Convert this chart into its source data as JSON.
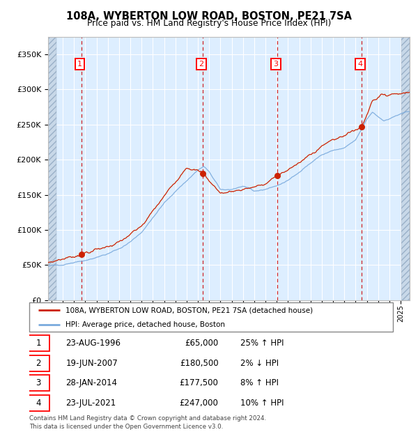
{
  "title": "108A, WYBERTON LOW ROAD, BOSTON, PE21 7SA",
  "subtitle": "Price paid vs. HM Land Registry's House Price Index (HPI)",
  "hpi_line_color": "#7aaadd",
  "price_line_color": "#cc2200",
  "dot_color": "#cc2200",
  "vline_color": "#cc0000",
  "bg_color": "#ddeeff",
  "grid_color": "#ffffff",
  "ylim": [
    0,
    375000
  ],
  "yticks": [
    0,
    50000,
    100000,
    150000,
    200000,
    250000,
    300000,
    350000
  ],
  "xlim_start": 1993.7,
  "xlim_end": 2025.8,
  "hpi_anchors_x": [
    1993.7,
    1994.0,
    1995.0,
    1996.0,
    1997.0,
    1998.0,
    1999.0,
    2000.0,
    2001.0,
    2002.0,
    2003.0,
    2004.0,
    2005.0,
    2006.0,
    2007.0,
    2007.5,
    2008.0,
    2009.0,
    2010.0,
    2011.0,
    2012.0,
    2013.0,
    2014.0,
    2015.0,
    2016.0,
    2017.0,
    2018.0,
    2019.0,
    2020.0,
    2021.0,
    2021.5,
    2022.0,
    2022.5,
    2023.0,
    2023.5,
    2024.0,
    2025.0,
    2025.8
  ],
  "hpi_anchors_y": [
    48000,
    49000,
    51000,
    54000,
    57000,
    61000,
    66000,
    73000,
    83000,
    97000,
    117000,
    138000,
    155000,
    170000,
    185000,
    190000,
    183000,
    157000,
    158000,
    162000,
    155000,
    158000,
    163000,
    170000,
    183000,
    195000,
    207000,
    213000,
    216000,
    228000,
    242000,
    258000,
    268000,
    262000,
    255000,
    258000,
    265000,
    268000
  ],
  "price_anchors_x": [
    1993.7,
    1994.5,
    1996.65,
    2000.0,
    2002.0,
    2004.0,
    2006.0,
    2007.46,
    2009.0,
    2011.0,
    2013.0,
    2014.07,
    2016.0,
    2018.0,
    2020.0,
    2021.56,
    2022.5,
    2023.5,
    2025.0,
    2025.8
  ],
  "price_anchors_y": [
    53000,
    57000,
    65000,
    82000,
    105000,
    148000,
    190000,
    180500,
    152000,
    158000,
    165000,
    177500,
    195000,
    220000,
    235000,
    247000,
    285000,
    292000,
    295000,
    296000
  ],
  "t_xvals": [
    1996.65,
    2007.46,
    2014.07,
    2021.56
  ],
  "t_prices": [
    65000,
    180500,
    177500,
    247000
  ],
  "hatch_left_end": 1994.42,
  "hatch_right_start": 2025.08,
  "footnote1": "Contains HM Land Registry data © Crown copyright and database right 2024.",
  "footnote2": "This data is licensed under the Open Government Licence v3.0.",
  "legend_label1": "108A, WYBERTON LOW ROAD, BOSTON, PE21 7SA (detached house)",
  "legend_label2": "HPI: Average price, detached house, Boston",
  "table_rows": [
    [
      "1",
      "23-AUG-1996",
      "£65,000",
      "25% ↑ HPI"
    ],
    [
      "2",
      "19-JUN-2007",
      "£180,500",
      "2% ↓ HPI"
    ],
    [
      "3",
      "28-JAN-2014",
      "£177,500",
      "8% ↑ HPI"
    ],
    [
      "4",
      "23-JUL-2021",
      "£247,000",
      "10% ↑ HPI"
    ]
  ]
}
